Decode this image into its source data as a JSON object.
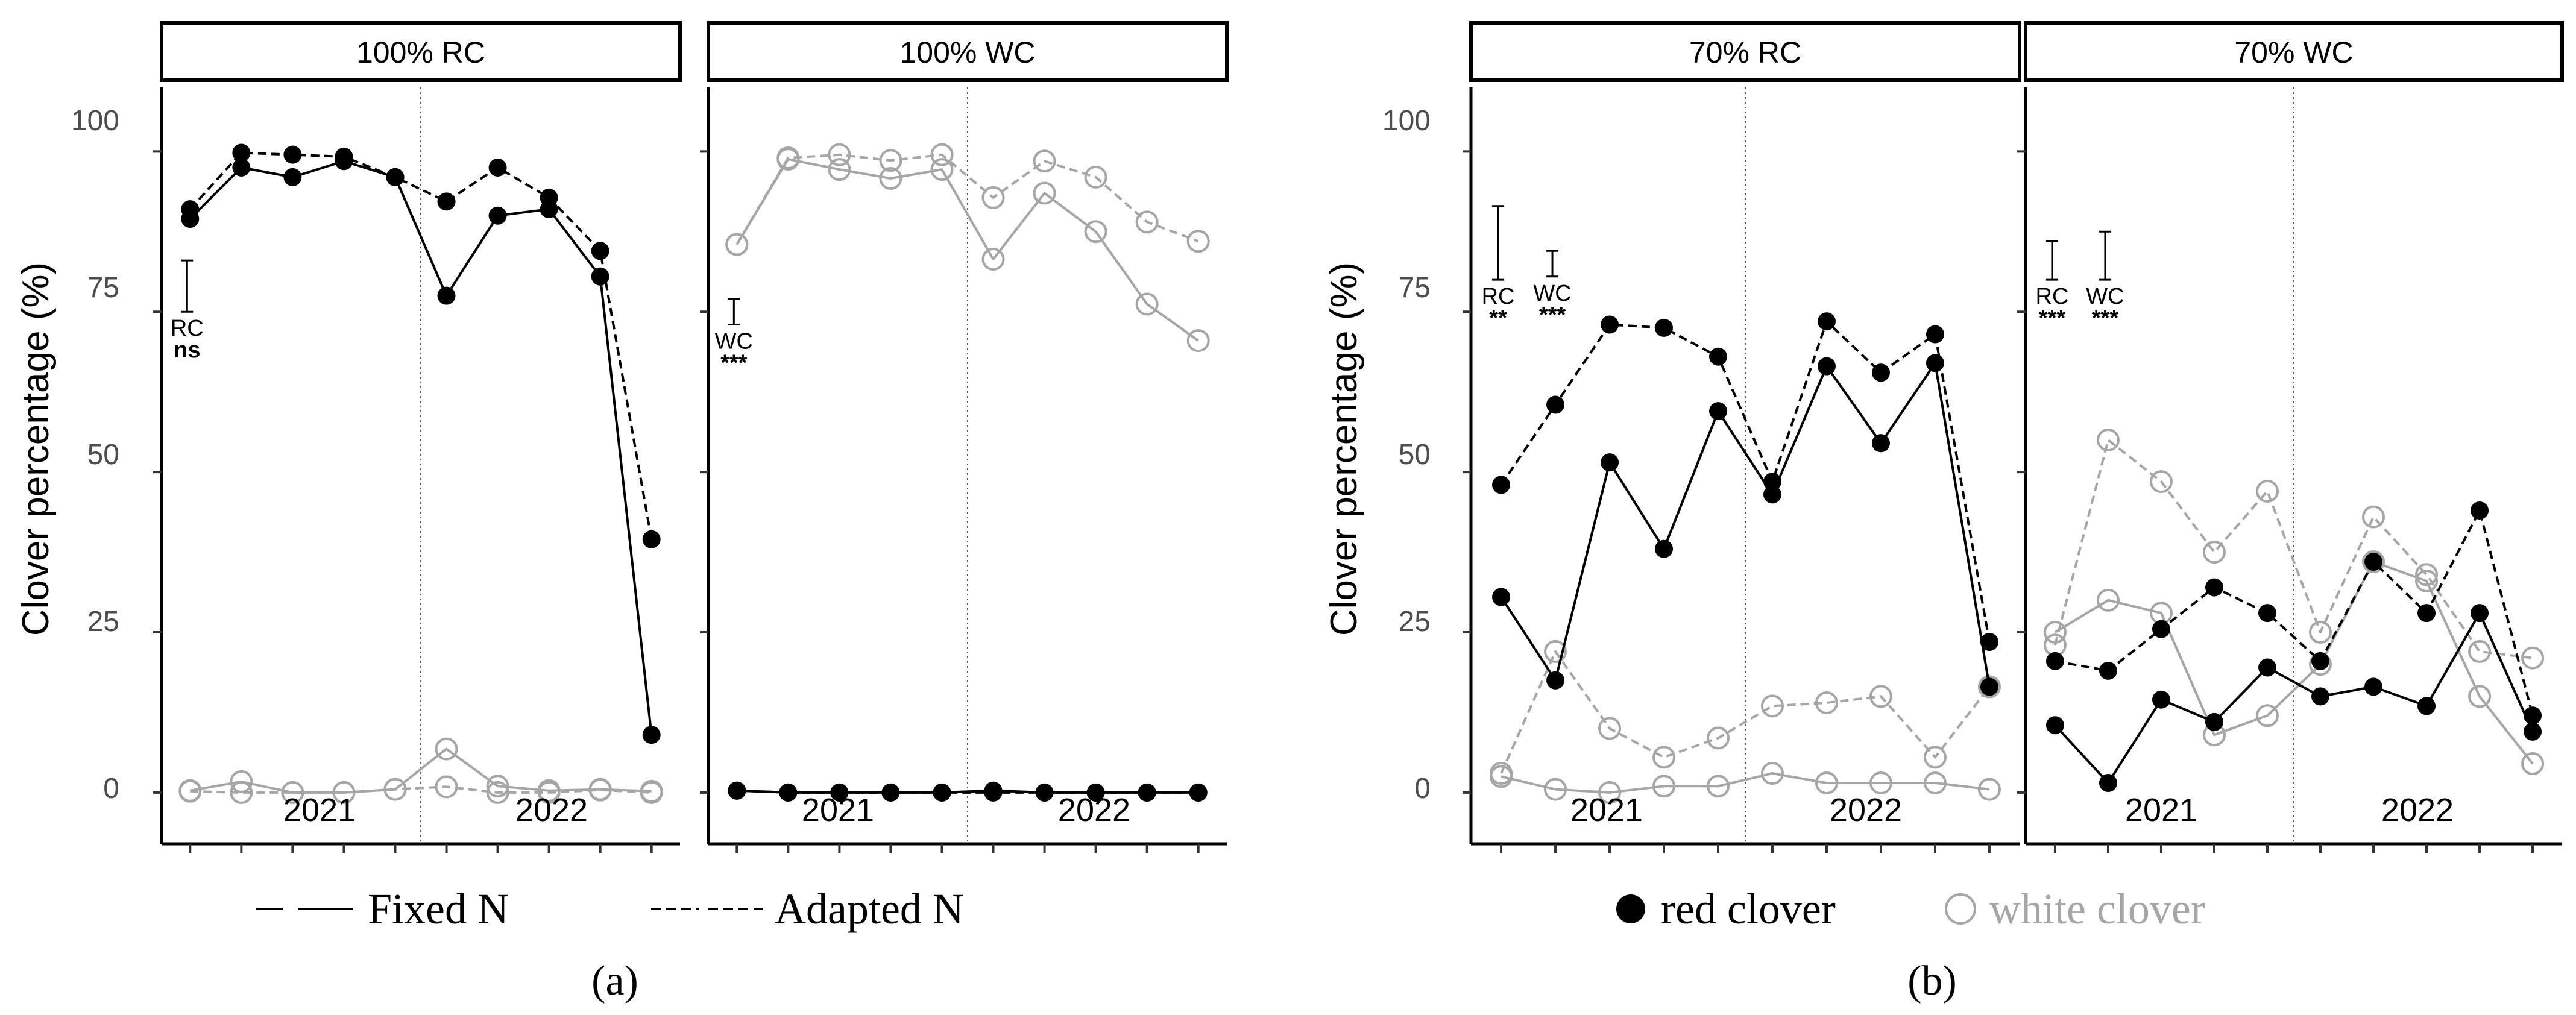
{
  "chart_data": [
    {
      "type": "line",
      "panel_tag": "(a)",
      "ylabel": "Clover percentage (%)",
      "ylim": [
        -8,
        110
      ],
      "yticks": [
        0,
        25,
        50,
        75,
        100
      ],
      "x_count": 10,
      "x_ticks_count": 10,
      "year_split_after_index": 4,
      "year_labels": [
        "2021",
        "2022"
      ],
      "facets": [
        {
          "strip": "100% RC",
          "significance": [
            {
              "label": "RC",
              "stars": "ns",
              "x": 0,
              "y_low": 75,
              "y_high": 83
            }
          ],
          "series": [
            {
              "clover": "red",
              "nitrogen": "fixed",
              "values": [
                89.5,
                97.5,
                96,
                98.5,
                96,
                77.5,
                90,
                91,
                80.5,
                9
              ]
            },
            {
              "clover": "red",
              "nitrogen": "adapted",
              "values": [
                91,
                99.8,
                99.5,
                99.2,
                96,
                92.2,
                97.5,
                92.8,
                84.5,
                39.5
              ]
            },
            {
              "clover": "white",
              "nitrogen": "fixed",
              "values": [
                0.3,
                1.7,
                0,
                0,
                0.5,
                6.8,
                1,
                0.3,
                0.5,
                0.2
              ]
            },
            {
              "clover": "white",
              "nitrogen": "adapted",
              "values": [
                0.2,
                0,
                0,
                0,
                0.5,
                0.9,
                0,
                0,
                0.4,
                0
              ]
            }
          ]
        },
        {
          "strip": "100% WC",
          "significance": [
            {
              "label": "WC",
              "stars": "***",
              "x": 0,
              "y_low": 73,
              "y_high": 77
            }
          ],
          "series": [
            {
              "clover": "white",
              "nitrogen": "fixed",
              "values": [
                85.5,
                98.8,
                97.2,
                95.8,
                97.2,
                83.2,
                93.5,
                87.5,
                76.2,
                70.5
              ]
            },
            {
              "clover": "white",
              "nitrogen": "adapted",
              "values": [
                85.5,
                99,
                99.5,
                98.6,
                99.5,
                92.8,
                98.5,
                96,
                89,
                86
              ]
            },
            {
              "clover": "red",
              "nitrogen": "fixed",
              "values": [
                0.3,
                0,
                0,
                0,
                0,
                0.3,
                0,
                0,
                0,
                0
              ]
            },
            {
              "clover": "red",
              "nitrogen": "adapted",
              "values": [
                0.3,
                0,
                0,
                0,
                0,
                0,
                0,
                0,
                0,
                0
              ]
            }
          ]
        }
      ]
    },
    {
      "type": "line",
      "panel_tag": "(b)",
      "ylabel": "Clover percentage (%)",
      "ylim": [
        -8,
        110
      ],
      "yticks": [
        0,
        25,
        50,
        75,
        100
      ],
      "x_count": 10,
      "x_ticks_count": 10,
      "year_split_after_index": 4,
      "year_labels": [
        "2021",
        "2022"
      ],
      "facets": [
        {
          "strip": "70% RC",
          "significance": [
            {
              "label": "RC",
              "stars": "**",
              "x": 0,
              "y_low": 80,
              "y_high": 91.5
            },
            {
              "label": "WC",
              "stars": "***",
              "x": 1,
              "y_low": 80.5,
              "y_high": 84.5
            }
          ],
          "series": [
            {
              "clover": "red",
              "nitrogen": "fixed",
              "values": [
                30.5,
                17.5,
                51.5,
                38,
                59.5,
                46.5,
                66.5,
                54.5,
                67,
                16.5
              ]
            },
            {
              "clover": "red",
              "nitrogen": "adapted",
              "values": [
                48,
                60.5,
                73,
                72.5,
                68,
                48.5,
                73.5,
                65.5,
                71.5,
                23.5
              ]
            },
            {
              "clover": "white",
              "nitrogen": "fixed",
              "values": [
                2.5,
                0.5,
                0,
                1,
                1,
                3,
                1.5,
                1.5,
                1.5,
                0.5
              ]
            },
            {
              "clover": "white",
              "nitrogen": "adapted",
              "values": [
                3,
                22,
                10,
                5.5,
                8.5,
                13.5,
                14,
                15,
                5.5,
                16.5
              ]
            }
          ]
        },
        {
          "strip": "70% WC",
          "significance": [
            {
              "label": "RC",
              "stars": "***",
              "x": 0,
              "y_low": 80,
              "y_high": 86
            },
            {
              "label": "WC",
              "stars": "***",
              "x": 1,
              "y_low": 80,
              "y_high": 87.5
            }
          ],
          "series": [
            {
              "clover": "red",
              "nitrogen": "fixed",
              "values": [
                10.5,
                1.5,
                14.5,
                11,
                19.5,
                15,
                16.5,
                13.5,
                28,
                9.5
              ]
            },
            {
              "clover": "red",
              "nitrogen": "adapted",
              "values": [
                20.5,
                19,
                25.5,
                32,
                28,
                20.5,
                36,
                28,
                44,
                12
              ]
            },
            {
              "clover": "white",
              "nitrogen": "fixed",
              "values": [
                25,
                30,
                28,
                9,
                12,
                20,
                36,
                33,
                15,
                4.5
              ]
            },
            {
              "clover": "white",
              "nitrogen": "adapted",
              "values": [
                23,
                55,
                48.5,
                37.5,
                47,
                25,
                43,
                34,
                22,
                21
              ]
            }
          ]
        }
      ]
    }
  ],
  "legend": {
    "linetype": [
      {
        "key": "fixed",
        "label": "Fixed N"
      },
      {
        "key": "adapted",
        "label": "Adapted N"
      }
    ],
    "clover": [
      {
        "key": "red",
        "label": "red clover"
      },
      {
        "key": "white",
        "label": "white clover"
      }
    ]
  },
  "colors": {
    "red_clover": "#000000",
    "white_clover": "#a6a6a6",
    "axis": "#000000",
    "tick_label": "#4d4d4d",
    "year_line": "#555555"
  }
}
